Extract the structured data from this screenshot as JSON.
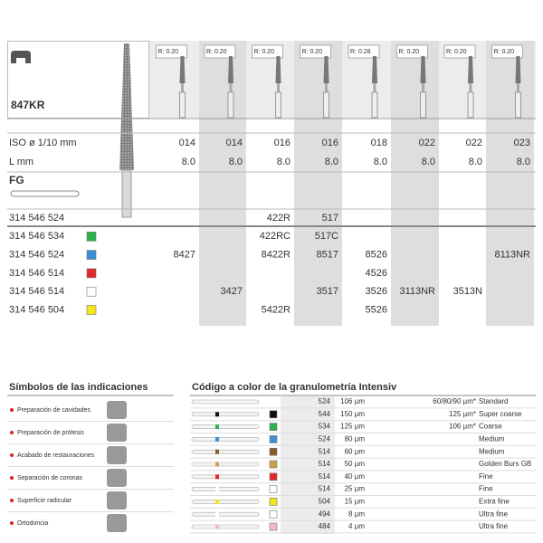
{
  "product": {
    "code": "847KR",
    "shank": "FG"
  },
  "sizes": {
    "radius": [
      "R: 0.20",
      "R: 0.20",
      "R: 0.20",
      "R: 0.20",
      "R: 0.28",
      "R: 0.20",
      "R: 0.20",
      "R: 0.20"
    ],
    "iso_label": "ISO ø 1/10 mm",
    "iso": [
      "014",
      "014",
      "016",
      "016",
      "018",
      "022",
      "022",
      "023"
    ],
    "length_label": "L mm",
    "length": [
      "8.0",
      "8.0",
      "8.0",
      "8.0",
      "8.0",
      "8.0",
      "8.0",
      "8.0"
    ]
  },
  "rows": [
    {
      "ref": "314 546 524",
      "cells": [
        null,
        null,
        "422R",
        "517",
        null,
        null,
        null,
        null
      ]
    },
    {
      "ref": "314 546 534",
      "swatch": "#2eb24b",
      "cells": [
        null,
        null,
        "422RC",
        "517C",
        null,
        null,
        null,
        null
      ]
    },
    {
      "ref": "314 546 524",
      "swatch": "#3a8fd6",
      "cells": [
        "8427",
        null,
        "8422R",
        "8517",
        "8526",
        null,
        null,
        "8113NR"
      ]
    },
    {
      "ref": "314 546 514",
      "swatch": "#e02a2a",
      "cells": [
        null,
        null,
        null,
        null,
        "4526",
        null,
        null,
        null
      ]
    },
    {
      "ref": "314 546 514",
      "swatch": "#ffffff",
      "cells": [
        null,
        "3427",
        null,
        "3517",
        "3526",
        "3113NR",
        "3513N",
        null
      ]
    },
    {
      "ref": "314 546 504",
      "swatch": "#f5e41a",
      "cells": [
        null,
        null,
        "5422R",
        null,
        "5526",
        null,
        null,
        null
      ]
    }
  ],
  "indications": {
    "title": "Símbolos de las indicaciones",
    "items": [
      "Preparación de cavidades",
      "Preparación de prótesis",
      "Acabado de restauraciones",
      "Separación de coronas",
      "Superficie radicular",
      "Ortodoncia"
    ]
  },
  "grit": {
    "title": "Código a color de la granulometría Intensiv",
    "rows": [
      {
        "code": "524",
        "size": "106 µm",
        "equiv": "60/80/90 µm*",
        "name": "Standard"
      },
      {
        "code": "544",
        "size": "150 µm",
        "equiv": "125 µm*",
        "name": "Super coarse",
        "swatch": "#111111"
      },
      {
        "code": "534",
        "size": "125 µm",
        "equiv": "106 µm*",
        "name": "Coarse",
        "swatch": "#2eb24b"
      },
      {
        "code": "524",
        "size": "80 µm",
        "name": "Medium",
        "swatch": "#3a8fd6"
      },
      {
        "code": "514",
        "size": "60 µm",
        "name": "Medium",
        "swatch": "#8a5a2b"
      },
      {
        "code": "514",
        "size": "50 µm",
        "name": "Golden Burs GB",
        "swatch": "#c9a24a"
      },
      {
        "code": "514",
        "size": "40 µm",
        "name": "Fine",
        "swatch": "#e02a2a"
      },
      {
        "code": "514",
        "size": "25 µm",
        "name": "Fine",
        "swatch": "#ffffff"
      },
      {
        "code": "504",
        "size": "15 µm",
        "name": "Extra fine",
        "swatch": "#f5e41a"
      },
      {
        "code": "494",
        "size": "8 µm",
        "name": "Ultra fine",
        "swatch": "#ffffff"
      },
      {
        "code": "484",
        "size": "4 µm",
        "name": "Ultra fine",
        "swatch": "#f4b6c8"
      }
    ]
  }
}
